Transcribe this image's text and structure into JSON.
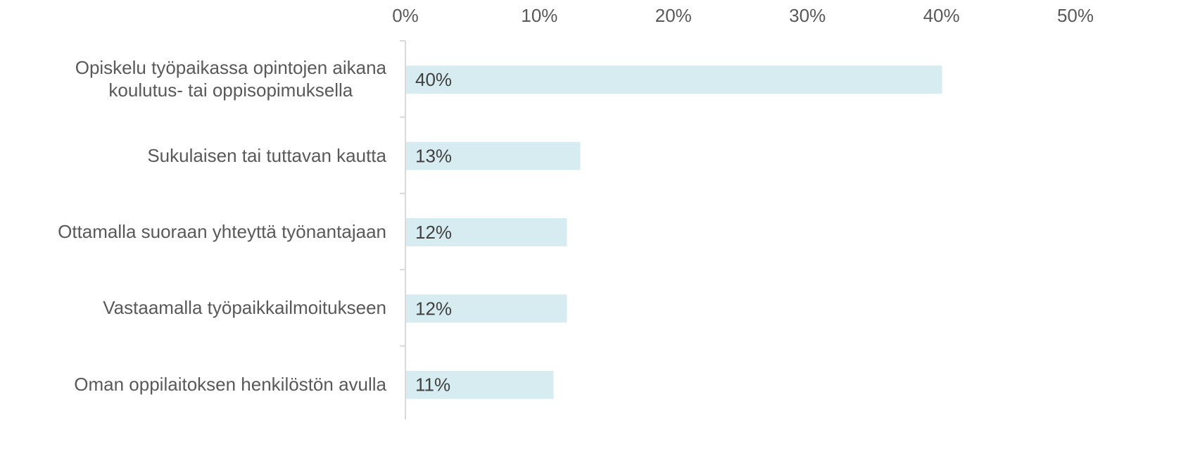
{
  "chart_data": {
    "type": "bar",
    "orientation": "horizontal",
    "categories": [
      "Opiskelu työpaikassa opintojen aikana\nkoulutus- tai oppisopimuksella",
      "Sukulaisen tai tuttavan kautta",
      "Ottamalla suoraan yhteyttä työnantajaan",
      "Vastaamalla työpaikkailmoitukseen",
      "Oman oppilaitoksen henkilöstön avulla"
    ],
    "values": [
      40,
      13,
      12,
      12,
      11
    ],
    "value_labels": [
      "40%",
      "13%",
      "12%",
      "12%",
      "11%"
    ],
    "color": "#d7ecf0",
    "xlim": [
      0,
      50
    ],
    "xticks": [
      {
        "value": 0,
        "label": "0%"
      },
      {
        "value": 10,
        "label": "10%"
      },
      {
        "value": 20,
        "label": "20%"
      },
      {
        "value": 30,
        "label": "30%"
      },
      {
        "value": 40,
        "label": "40%"
      },
      {
        "value": 50,
        "label": "50%"
      }
    ],
    "grid": false
  }
}
